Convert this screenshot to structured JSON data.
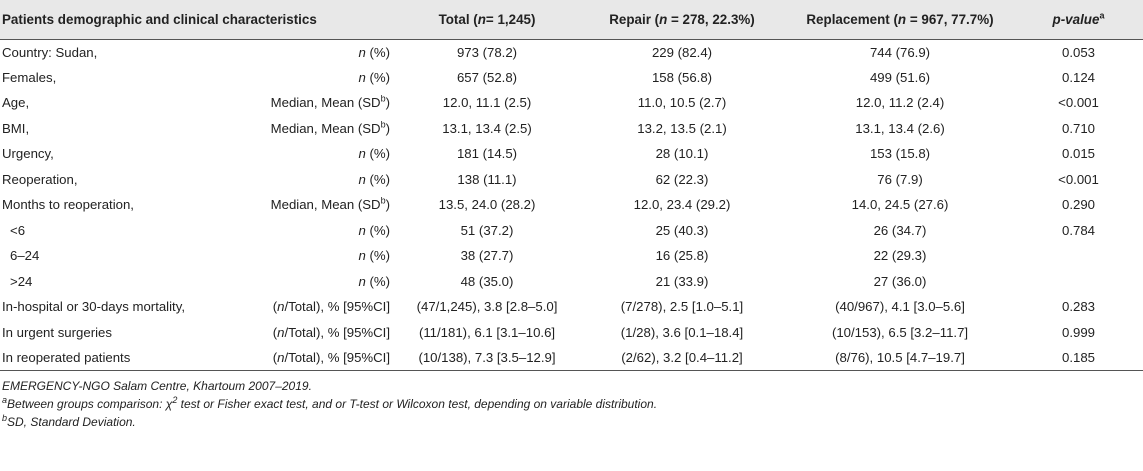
{
  "header": {
    "characteristics": "Patients demographic and clinical characteristics",
    "total_prefix": "Total (",
    "total_n": "n",
    "total_suffix": "= 1,245)",
    "repair_prefix": "Repair (",
    "repair_n": "n",
    "repair_suffix": " = 278, 22.3%)",
    "replacement_prefix": "Replacement (",
    "replacement_n": "n",
    "replacement_suffix": " = 967, 77.7%)",
    "pvalue_label": "p-value",
    "pvalue_sup": "a"
  },
  "rows": [
    {
      "label": "Country: Sudan,",
      "stat_pre": "",
      "stat_italic": "n",
      "stat_post": " (%)",
      "stat_sup": "",
      "stat_tail": "",
      "total": "973 (78.2)",
      "repair": "229 (82.4)",
      "replacement": "744 (76.9)",
      "p": "0.053"
    },
    {
      "label": "Females,",
      "stat_pre": "",
      "stat_italic": "n",
      "stat_post": " (%)",
      "stat_sup": "",
      "stat_tail": "",
      "total": "657 (52.8)",
      "repair": "158 (56.8)",
      "replacement": "499 (51.6)",
      "p": "0.124"
    },
    {
      "label": "Age,",
      "stat_pre": "Median, Mean (SD",
      "stat_italic": "",
      "stat_post": "",
      "stat_sup": "b",
      "stat_tail": ")",
      "total": "12.0, 11.1 (2.5)",
      "repair": "11.0, 10.5 (2.7)",
      "replacement": "12.0, 11.2 (2.4)",
      "p": "<0.001"
    },
    {
      "label": "BMI,",
      "stat_pre": "Median, Mean (SD",
      "stat_italic": "",
      "stat_post": "",
      "stat_sup": "b",
      "stat_tail": ")",
      "total": "13.1, 13.4 (2.5)",
      "repair": "13.2, 13.5 (2.1)",
      "replacement": "13.1, 13.4 (2.6)",
      "p": "0.710"
    },
    {
      "label": "Urgency,",
      "stat_pre": "",
      "stat_italic": "n",
      "stat_post": " (%)",
      "stat_sup": "",
      "stat_tail": "",
      "total": "181 (14.5)",
      "repair": "28 (10.1)",
      "replacement": "153 (15.8)",
      "p": "0.015"
    },
    {
      "label": "Reoperation,",
      "stat_pre": "",
      "stat_italic": "n",
      "stat_post": " (%)",
      "stat_sup": "",
      "stat_tail": "",
      "total": "138 (11.1)",
      "repair": "62 (22.3)",
      "replacement": "76 (7.9)",
      "p": "<0.001"
    },
    {
      "label": "Months to reoperation,",
      "stat_pre": "Median, Mean (SD",
      "stat_italic": "",
      "stat_post": "",
      "stat_sup": "b",
      "stat_tail": ")",
      "total": "13.5, 24.0 (28.2)",
      "repair": "12.0, 23.4 (29.2)",
      "replacement": "14.0, 24.5 (27.6)",
      "p": "0.290"
    },
    {
      "label": "<6",
      "stat_pre": "",
      "stat_italic": "n",
      "stat_post": " (%)",
      "stat_sup": "",
      "stat_tail": "",
      "total": "51 (37.2)",
      "repair": "25 (40.3)",
      "replacement": "26 (34.7)",
      "p": "0.784",
      "indent": true
    },
    {
      "label": "6–24",
      "stat_pre": "",
      "stat_italic": "n",
      "stat_post": " (%)",
      "stat_sup": "",
      "stat_tail": "",
      "total": "38 (27.7)",
      "repair": "16 (25.8)",
      "replacement": "22 (29.3)",
      "p": "",
      "indent": true
    },
    {
      "label": ">24",
      "stat_pre": "",
      "stat_italic": "n",
      "stat_post": " (%)",
      "stat_sup": "",
      "stat_tail": "",
      "total": "48 (35.0)",
      "repair": "21 (33.9)",
      "replacement": "27 (36.0)",
      "p": "",
      "indent": true
    },
    {
      "label": "In-hospital or 30-days mortality,",
      "stat_pre": "(",
      "stat_italic": "n",
      "stat_post": "/Total), % [95%CI]",
      "stat_sup": "",
      "stat_tail": "",
      "total": "(47/1,245), 3.8 [2.8–5.0]",
      "repair": "(7/278), 2.5 [1.0–5.1]",
      "replacement": "(40/967), 4.1 [3.0–5.6]",
      "p": "0.283"
    },
    {
      "label": "In urgent surgeries",
      "stat_pre": "(",
      "stat_italic": "n",
      "stat_post": "/Total), % [95%CI]",
      "stat_sup": "",
      "stat_tail": "",
      "total": "(11/181), 6.1 [3.1–10.6]",
      "repair": "(1/28), 3.6 [0.1–18.4]",
      "replacement": "(10/153), 6.5 [3.2–11.7]",
      "p": "0.999"
    },
    {
      "label": "In reoperated patients",
      "stat_pre": "(",
      "stat_italic": "n",
      "stat_post": "/Total), % [95%CI]",
      "stat_sup": "",
      "stat_tail": "",
      "total": "(10/138), 7.3 [3.5–12.9]",
      "repair": "(2/62), 3.2 [0.4–11.2]",
      "replacement": "(8/76), 10.5 [4.7–19.7]",
      "p": "0.185"
    }
  ],
  "notes": {
    "source": "EMERGENCY-NGO Salam Centre, Khartoum 2007–2019.",
    "a_sup": "a",
    "a_pre": "Between groups comparison: χ",
    "a_chi_sup": "2",
    "a_post": " test or Fisher exact test, and or T-test or Wilcoxon test, depending on variable distribution.",
    "b_sup": "b",
    "b_text": "SD, Standard Deviation."
  }
}
